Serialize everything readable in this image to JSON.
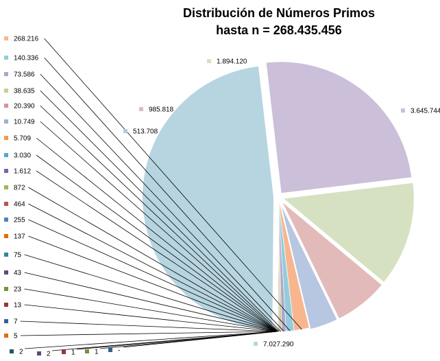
{
  "chart_data": {
    "type": "pie",
    "title": "Distribución de Números Primos",
    "subtitle": "hasta n = 268.435.456",
    "slices": [
      {
        "label": "7.027.290",
        "value": 7027290,
        "color": "#b7d5e0"
      },
      {
        "label": "3.645.744",
        "value": 3645744,
        "color": "#cbbfd9"
      },
      {
        "label": "1.894.120",
        "value": 1894120,
        "color": "#d5e1c1"
      },
      {
        "label": "985.818",
        "value": 985818,
        "color": "#e3baba"
      },
      {
        "label": "513.708",
        "value": 513708,
        "color": "#b7c6e1"
      },
      {
        "label": "268.216",
        "value": 268216,
        "color": "#f8b68f"
      },
      {
        "label": "140.336",
        "value": 140336,
        "color": "#93cddd"
      },
      {
        "label": "73.586",
        "value": 73586,
        "color": "#b3a3c9"
      },
      {
        "label": "38.635",
        "value": 38635,
        "color": "#bcd695"
      },
      {
        "label": "20.390",
        "value": 20390,
        "color": "#d99594"
      },
      {
        "label": "10.749",
        "value": 10749,
        "color": "#95b3d7"
      },
      {
        "label": "5.709",
        "value": 5709,
        "color": "#f79646"
      },
      {
        "label": "3.030",
        "value": 3030,
        "color": "#4bacc6"
      },
      {
        "label": "1.612",
        "value": 1612,
        "color": "#8064a2"
      },
      {
        "label": "872",
        "value": 872,
        "color": "#9bbb59"
      },
      {
        "label": "464",
        "value": 464,
        "color": "#c0504d"
      },
      {
        "label": "255",
        "value": 255,
        "color": "#4f81bd"
      },
      {
        "label": "137",
        "value": 137,
        "color": "#e46c0a"
      },
      {
        "label": "75",
        "value": 75,
        "color": "#31859c"
      },
      {
        "label": "43",
        "value": 43,
        "color": "#5f497a"
      },
      {
        "label": "23",
        "value": 23,
        "color": "#76923c"
      },
      {
        "label": "13",
        "value": 13,
        "color": "#953735"
      },
      {
        "label": "7",
        "value": 7,
        "color": "#366092"
      },
      {
        "label": "5",
        "value": 5,
        "color": "#e46c0a"
      },
      {
        "label": "2",
        "value": 2,
        "color": "#215967"
      },
      {
        "label": "2",
        "value": 2,
        "color": "#60497a"
      },
      {
        "label": "1",
        "value": 1,
        "color": "#953735"
      },
      {
        "label": "1",
        "value": 1,
        "color": "#76923c"
      },
      {
        "label": "-",
        "value": 0,
        "color": "#366092"
      }
    ],
    "legend": "none",
    "data_labels": "outside with leader lines"
  }
}
